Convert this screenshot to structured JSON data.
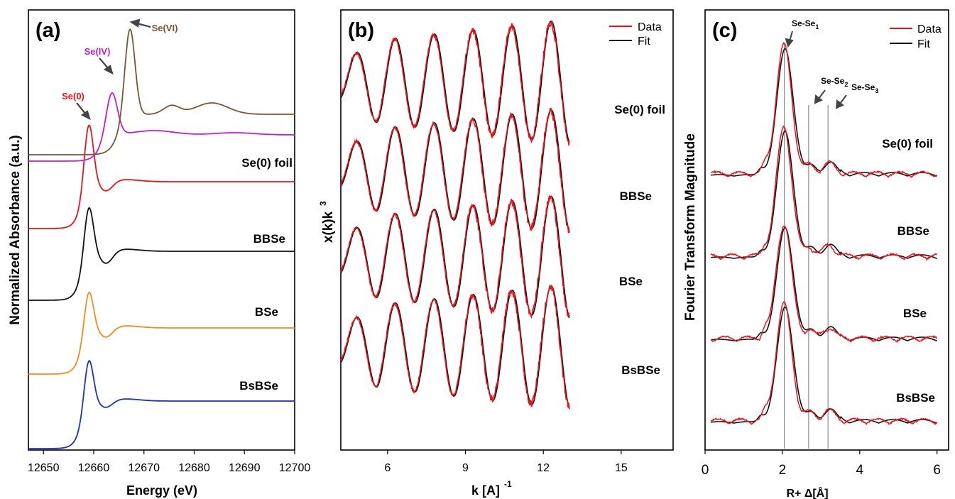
{
  "panel_a": {
    "label": "(a)",
    "xlabel": "Energy (eV)",
    "ylabel": "Normalized Absorbance (a.u.)",
    "ticks": [
      "12650",
      "12660",
      "12670",
      "12680",
      "12690",
      "12700"
    ],
    "sample_labels": [
      "Se(0) foil",
      "BBSe",
      "BSe",
      "BsBSe"
    ],
    "annotations": [
      "Se(0)",
      "Se(IV)",
      "Se(VI)"
    ],
    "colors": {
      "se0": "#e8141b",
      "se4": "#c41fc2",
      "se6": "#7a5530",
      "bbse": "#111111",
      "bse": "#f58a1f",
      "bsbse": "#1a2fcf"
    }
  },
  "panel_b": {
    "label": "(b)",
    "xlabel": "k [A]",
    "xlabel_sup": "-1",
    "ylabel": "x(k)k",
    "ylabel_sup": "3",
    "ticks": [
      "6",
      "9",
      "12",
      "15"
    ],
    "sample_labels": [
      "Se(0) foil",
      "BBSe",
      "BSe",
      "BsBSe"
    ],
    "legend": [
      "Data",
      "Fit"
    ],
    "colors": {
      "data": "#e8141b",
      "fit": "#111111"
    }
  },
  "panel_c": {
    "label": "(c)",
    "xlabel": "R+ Δ[Å]",
    "ylabel": "Fourier Transform Magnitude",
    "ticks": [
      "0",
      "2",
      "4",
      "6"
    ],
    "sample_labels": [
      "Se(0) foil",
      "BBSe",
      "BSe",
      "BsBSe"
    ],
    "legend": [
      "Data",
      "Fit"
    ],
    "shell_labels": {
      "base": "Se-Se",
      "subs": [
        "1",
        "2",
        "3"
      ]
    }
  },
  "chart_data": [
    {
      "type": "line",
      "panel": "a",
      "title": "",
      "xlabel": "Energy (eV)",
      "ylabel": "Normalized Absorbance (a.u.)",
      "xlim": [
        12647,
        12700
      ],
      "series": [
        {
          "name": "Se(VI)",
          "peak_energy": 12667,
          "color": "#7a5530"
        },
        {
          "name": "Se(IV)",
          "peak_energy": 12663.5,
          "color": "#c41fc2"
        },
        {
          "name": "Se(0) foil",
          "peak_energy": 12659,
          "color": "#e8141b"
        },
        {
          "name": "BBSe",
          "peak_energy": 12659,
          "color": "#111111"
        },
        {
          "name": "BSe",
          "peak_energy": 12659,
          "color": "#f58a1f"
        },
        {
          "name": "BsBSe",
          "peak_energy": 12659,
          "color": "#1a2fcf"
        }
      ]
    },
    {
      "type": "line",
      "panel": "b",
      "title": "",
      "xlabel": "k [A]^-1",
      "ylabel": "x(k)k^3",
      "xlim": [
        4.2,
        17
      ],
      "data_k_range": [
        4.2,
        13
      ],
      "series": [
        {
          "name": "Se(0) foil"
        },
        {
          "name": "BBSe"
        },
        {
          "name": "BSe"
        },
        {
          "name": "BsBSe"
        }
      ]
    },
    {
      "type": "line",
      "panel": "c",
      "title": "",
      "xlabel": "R+ Δ[Å]",
      "ylabel": "Fourier Transform Magnitude",
      "xlim": [
        0,
        6.3
      ],
      "shell_positions": [
        2.05,
        2.68,
        3.18
      ],
      "series": [
        {
          "name": "Se(0) foil",
          "main_peak_R": 2.05
        },
        {
          "name": "BBSe",
          "main_peak_R": 2.05
        },
        {
          "name": "BSe",
          "main_peak_R": 2.05
        },
        {
          "name": "BsBSe",
          "main_peak_R": 2.05
        }
      ]
    }
  ]
}
